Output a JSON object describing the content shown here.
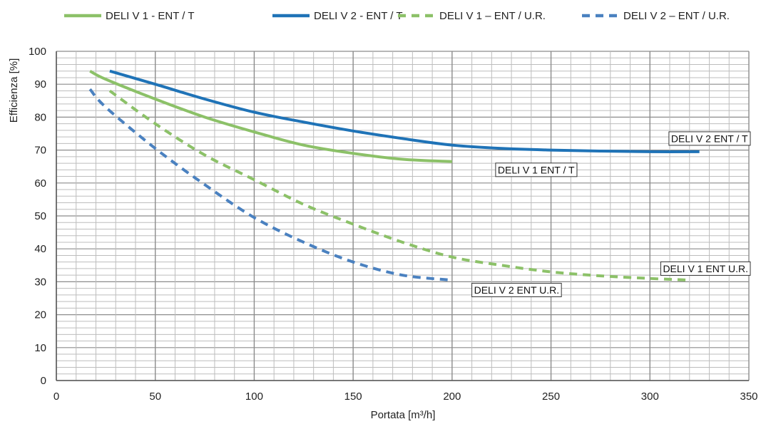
{
  "chart_data": {
    "type": "line",
    "title": "",
    "xlabel": "Portata [m³/h]",
    "ylabel": "Efficienza [%]",
    "xlim": [
      0,
      350
    ],
    "ylim": [
      0,
      100
    ],
    "xticks": [
      0,
      50,
      100,
      150,
      200,
      250,
      300,
      350
    ],
    "yticks": [
      0,
      10,
      20,
      30,
      40,
      50,
      60,
      70,
      80,
      90,
      100
    ],
    "grid": true,
    "legend_position": "top",
    "series": [
      {
        "name": "DELI V 1 - ENT / T",
        "color": "#8cc168",
        "dash": "solid",
        "x": [
          17,
          25,
          50,
          75,
          100,
          125,
          150,
          175,
          200
        ],
        "y": [
          94,
          91.5,
          85.5,
          80,
          75.5,
          71.5,
          69,
          67.2,
          66.5
        ]
      },
      {
        "name": "DELI V 2 - ENT / T",
        "color": "#1f73b7",
        "dash": "solid",
        "x": [
          27,
          50,
          75,
          100,
          125,
          150,
          175,
          200,
          225,
          250,
          275,
          300,
          325
        ],
        "y": [
          94,
          90,
          85.5,
          81.5,
          78.5,
          75.8,
          73.5,
          71.5,
          70.5,
          70,
          69.7,
          69.5,
          69.5
        ]
      },
      {
        "name": "DELI V 1 – ENT / U.R.",
        "color": "#8cc168",
        "dash": "dashed",
        "x": [
          27,
          50,
          75,
          100,
          125,
          150,
          175,
          200,
          225,
          250,
          275,
          300,
          320
        ],
        "y": [
          88,
          78,
          68.5,
          61,
          53.5,
          47.5,
          42,
          37.5,
          35,
          33,
          31.8,
          31,
          30.5
        ]
      },
      {
        "name": "DELI V 2 – ENT / U.R.",
        "color": "#4a81c0",
        "dash": "dashed",
        "x": [
          17,
          25,
          50,
          75,
          100,
          125,
          150,
          175,
          200
        ],
        "y": [
          88.5,
          83,
          70.5,
          59.5,
          49.5,
          42,
          36,
          32,
          30.5
        ]
      }
    ],
    "annotations": [
      {
        "text": "DELI V 2 ENT / T",
        "x": 310,
        "y": 73.5
      },
      {
        "text": "DELI V 1 ENT / T",
        "x": 222,
        "y": 64
      },
      {
        "text": "DELI V 1 ENT U.R.",
        "x": 323,
        "y": 34
      },
      {
        "text": "DELI V 2 ENT U.R.",
        "x": 210,
        "y": 27.5
      }
    ]
  }
}
